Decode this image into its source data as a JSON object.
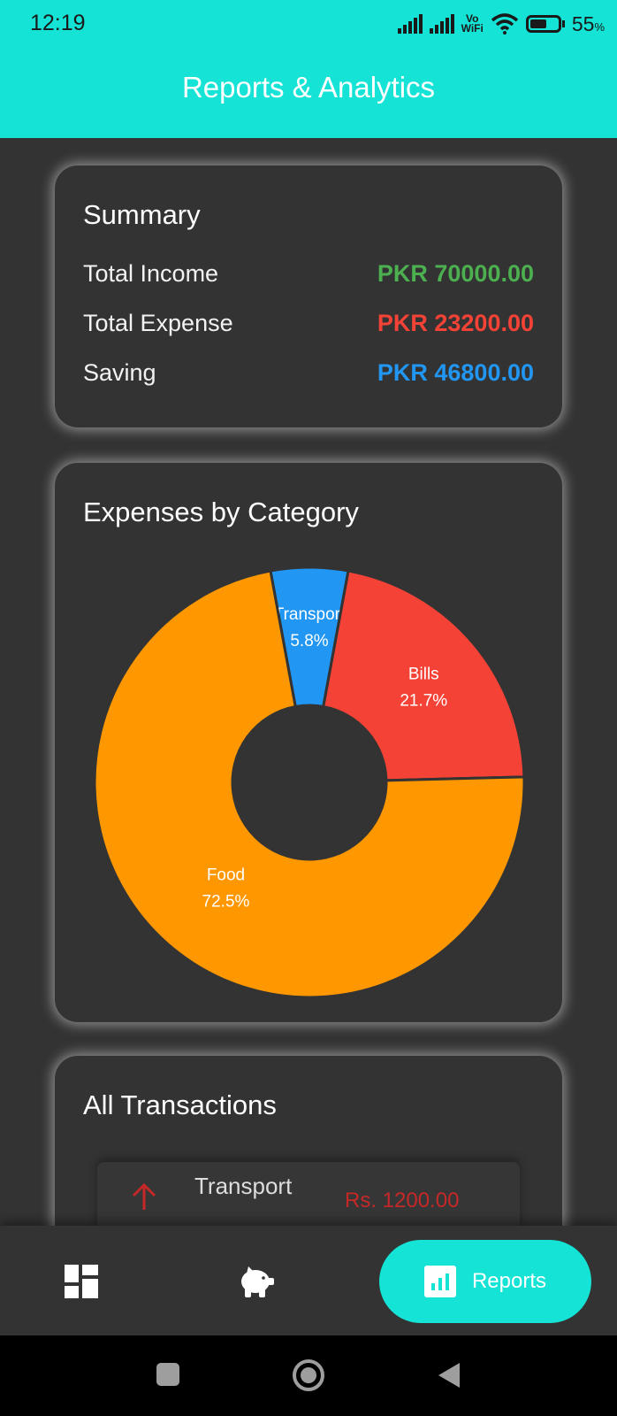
{
  "status_bar": {
    "time": "12:19",
    "vowifi_top": "Vo",
    "vowifi_bottom": "WiFi",
    "battery_pct": "55",
    "battery_unit": "%"
  },
  "appbar": {
    "title": "Reports & Analytics"
  },
  "summary": {
    "title": "Summary",
    "rows": [
      {
        "label": "Total Income",
        "value": "PKR 70000.00",
        "color": "#4CAF50"
      },
      {
        "label": "Total Expense",
        "value": "PKR 23200.00",
        "color": "#F44336"
      },
      {
        "label": "Saving",
        "value": "PKR 46800.00",
        "color": "#2196F3"
      }
    ]
  },
  "expenses": {
    "title": "Expenses by Category",
    "chart_data": {
      "type": "pie",
      "categories": [
        "Transport",
        "Bills",
        "Food"
      ],
      "values": [
        5.8,
        21.7,
        72.5
      ],
      "labels": [
        "5.8%",
        "21.7%",
        "72.5%"
      ],
      "colors": [
        "#2196F3",
        "#F44336",
        "#FF9800"
      ]
    }
  },
  "transactions": {
    "title": "All Transactions",
    "items": [
      {
        "category": "Transport",
        "amount": "Rs. 1200.00",
        "icon": "arrow-up-icon"
      }
    ]
  },
  "bottom_nav": {
    "items": [
      {
        "icon": "dashboard-icon"
      },
      {
        "icon": "piggy-bank-icon"
      },
      {
        "icon": "bar-chart-icon",
        "label": "Reports"
      }
    ],
    "active_color": "#14E3D5"
  },
  "system_nav": {
    "icons": [
      "square-icon",
      "circle-icon",
      "back-triangle-icon"
    ]
  }
}
